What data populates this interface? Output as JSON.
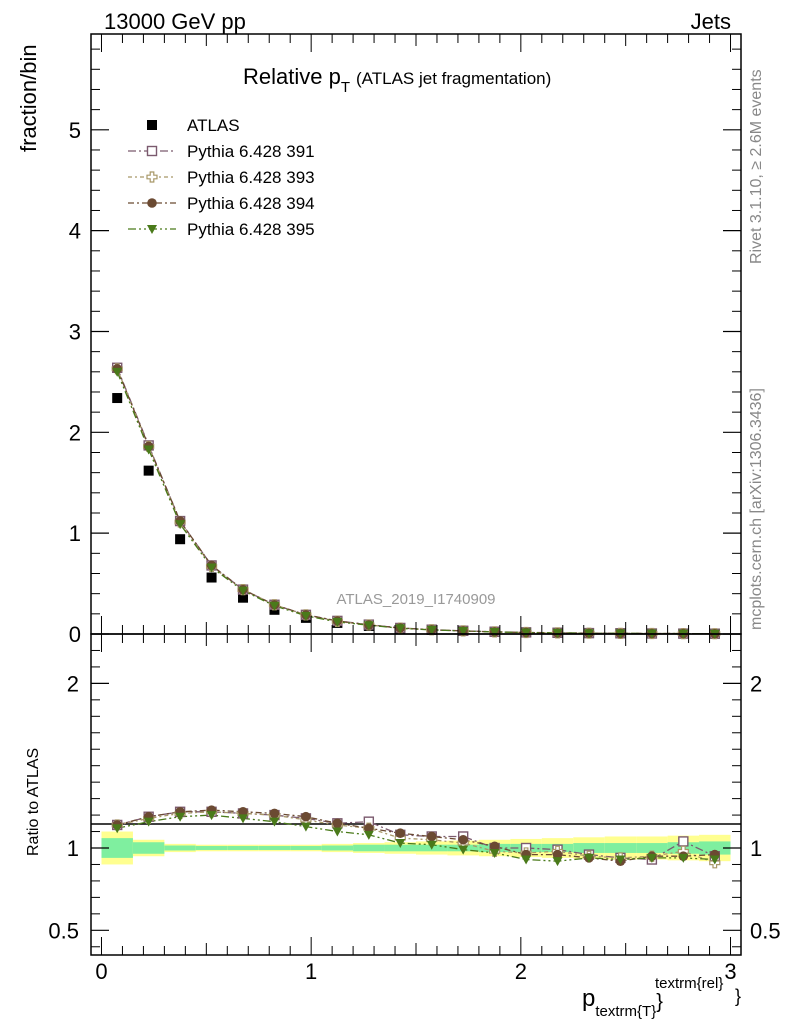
{
  "header": {
    "left": "13000 GeV pp",
    "right": "Jets"
  },
  "title": {
    "main": "Relative p",
    "main_sub": "T",
    "paren": "(ATLAS jet fragmentation)"
  },
  "side_text": {
    "top": "Rivet 3.1.10, ≥ 2.6M events",
    "bottom": "mcplots.cern.ch [arXiv:1306.3436]"
  },
  "watermark": "ATLAS_2019_I1740909",
  "xlabel": {
    "main": "p",
    "sub": "textrm{T}",
    "sup": "textrm{rel}",
    "brace": "}"
  },
  "colors": {
    "atlas": "#000000",
    "p391": "#7b5a6e",
    "p393": "#a89868",
    "p394": "#6b4a32",
    "p395": "#4a7a1a",
    "band_inner": "#7fef9f",
    "band_outer": "#ffff90"
  },
  "chart_data": [
    {
      "type": "scatter",
      "ylabel": "fraction/bin",
      "xlim": [
        -0.05,
        3.05
      ],
      "ylim": [
        0,
        5.95
      ],
      "yticks": [
        0,
        1,
        2,
        3,
        4,
        5
      ],
      "ytick_labels": [
        "0",
        "1",
        "2",
        "3",
        "4",
        "5"
      ],
      "x": [
        0.075,
        0.225,
        0.375,
        0.525,
        0.675,
        0.825,
        0.975,
        1.125,
        1.275,
        1.425,
        1.575,
        1.725,
        1.875,
        2.025,
        2.175,
        2.325,
        2.475,
        2.625,
        2.775,
        2.925
      ],
      "series": [
        {
          "name": "ATLAS",
          "marker": "square-filled",
          "values": [
            2.34,
            1.62,
            0.94,
            0.56,
            0.36,
            0.24,
            0.16,
            0.11,
            0.08,
            0.055,
            0.04,
            0.03,
            0.022,
            0.016,
            0.012,
            0.009,
            0.007,
            0.005,
            0.004,
            0.003
          ]
        },
        {
          "name": "Pythia 6.428 391",
          "marker": "square-open",
          "values": [
            2.64,
            1.87,
            1.12,
            0.68,
            0.44,
            0.29,
            0.19,
            0.13,
            0.093,
            0.06,
            0.043,
            0.032,
            0.022,
            0.016,
            0.012,
            0.009,
            0.007,
            0.005,
            0.004,
            0.003
          ]
        },
        {
          "name": "Pythia 6.428 393",
          "marker": "cross-open",
          "values": [
            2.63,
            1.86,
            1.11,
            0.67,
            0.44,
            0.29,
            0.19,
            0.125,
            0.09,
            0.058,
            0.042,
            0.031,
            0.021,
            0.015,
            0.011,
            0.008,
            0.006,
            0.005,
            0.004,
            0.003
          ]
        },
        {
          "name": "Pythia 6.428 394",
          "marker": "circle-filled",
          "values": [
            2.63,
            1.86,
            1.12,
            0.68,
            0.44,
            0.29,
            0.19,
            0.13,
            0.09,
            0.06,
            0.042,
            0.031,
            0.021,
            0.015,
            0.011,
            0.008,
            0.006,
            0.005,
            0.004,
            0.003
          ]
        },
        {
          "name": "Pythia 6.428 395",
          "marker": "triangle-down-filled",
          "values": [
            2.6,
            1.83,
            1.09,
            0.66,
            0.43,
            0.28,
            0.18,
            0.12,
            0.087,
            0.057,
            0.041,
            0.03,
            0.02,
            0.015,
            0.011,
            0.008,
            0.006,
            0.005,
            0.004,
            0.003
          ]
        }
      ]
    },
    {
      "type": "scatter",
      "ylabel": "Ratio to ATLAS",
      "xlim": [
        -0.05,
        3.05
      ],
      "ylim": [
        0.35,
        2.3
      ],
      "yticks": [
        0.5,
        1,
        2
      ],
      "ytick_labels": [
        "0.5",
        "1",
        "2"
      ],
      "xticks": [
        0,
        1,
        2,
        3
      ],
      "xtick_labels": [
        "0",
        "1",
        "2",
        "3"
      ],
      "x": [
        0.075,
        0.225,
        0.375,
        0.525,
        0.675,
        0.825,
        0.975,
        1.125,
        1.275,
        1.425,
        1.575,
        1.725,
        1.875,
        2.025,
        2.175,
        2.325,
        2.475,
        2.625,
        2.775,
        2.925
      ],
      "band_edges": [
        0,
        0.15,
        0.3,
        0.45,
        0.6,
        0.75,
        0.9,
        1.05,
        1.2,
        1.35,
        1.5,
        1.65,
        1.8,
        1.95,
        2.1,
        2.25,
        2.4,
        2.55,
        2.7,
        2.85,
        3.0
      ],
      "band_inner": [
        0.06,
        0.035,
        0.015,
        0.012,
        0.012,
        0.012,
        0.012,
        0.015,
        0.02,
        0.02,
        0.02,
        0.02,
        0.025,
        0.025,
        0.025,
        0.03,
        0.03,
        0.03,
        0.035,
        0.04
      ],
      "band_outer": [
        0.1,
        0.05,
        0.025,
        0.02,
        0.02,
        0.02,
        0.02,
        0.025,
        0.03,
        0.035,
        0.04,
        0.045,
        0.05,
        0.055,
        0.06,
        0.065,
        0.07,
        0.07,
        0.075,
        0.08
      ],
      "series": [
        {
          "name": "Pythia 6.428 391",
          "values": [
            1.14,
            1.19,
            1.22,
            1.22,
            1.21,
            1.2,
            1.18,
            1.15,
            1.16,
            1.08,
            1.07,
            1.07,
            1.0,
            1.0,
            0.99,
            0.96,
            0.94,
            0.93,
            1.04,
            0.95
          ]
        },
        {
          "name": "Pythia 6.428 393",
          "values": [
            1.14,
            1.18,
            1.21,
            1.22,
            1.21,
            1.2,
            1.17,
            1.14,
            1.12,
            1.06,
            1.05,
            1.03,
            0.98,
            0.97,
            0.98,
            0.95,
            0.94,
            0.95,
            0.98,
            0.91
          ]
        },
        {
          "name": "Pythia 6.428 394",
          "values": [
            1.14,
            1.19,
            1.22,
            1.23,
            1.22,
            1.21,
            1.19,
            1.15,
            1.12,
            1.09,
            1.07,
            1.05,
            1.01,
            0.96,
            0.96,
            0.94,
            0.92,
            0.95,
            0.95,
            0.96
          ]
        },
        {
          "name": "Pythia 6.428 395",
          "values": [
            1.12,
            1.16,
            1.19,
            1.2,
            1.18,
            1.16,
            1.13,
            1.1,
            1.08,
            1.03,
            1.02,
            0.99,
            0.97,
            0.93,
            0.92,
            0.94,
            0.93,
            0.94,
            0.94,
            0.93
          ]
        }
      ]
    }
  ]
}
